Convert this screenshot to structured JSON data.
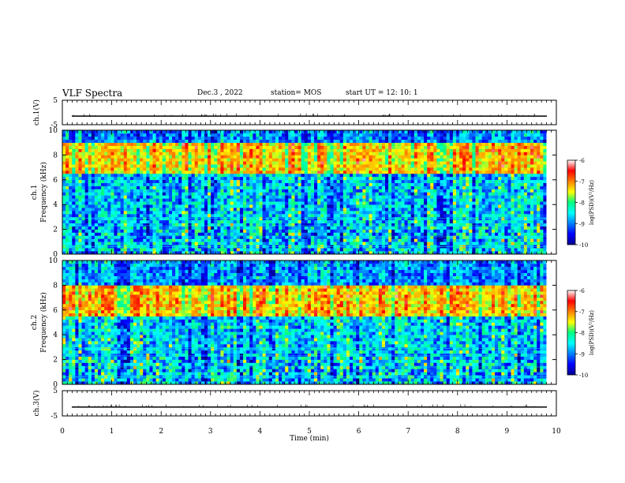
{
  "header": {
    "title": "VLF Spectra",
    "date": "Dec.3 , 2022",
    "station": "station= MOS",
    "start": "start UT = 12: 10: 1"
  },
  "chart_data": [
    {
      "type": "line",
      "panel": "ch1-voltage",
      "ylabel": "ch.1(V)",
      "y_ticks": [
        "5",
        "-5"
      ],
      "ylim": [
        -5,
        5
      ],
      "xlim": [
        0,
        10
      ],
      "baseline_value": -1.5
    },
    {
      "type": "heatmap",
      "panel": "ch1-spectrogram",
      "ylabel": "ch.1 Frequency (kHz)",
      "y_ticks": [
        "0",
        "2",
        "4",
        "6",
        "8",
        "10"
      ],
      "ylim": [
        0,
        10
      ],
      "xlim": [
        0,
        9.8
      ],
      "band_peak_khz": [
        6.5,
        9.0
      ],
      "colorbar": {
        "label": "log(PSD)(V²/Hz)",
        "ticks": [
          "-6",
          "-7",
          "-8",
          "-9",
          "-10"
        ],
        "range": [
          -10,
          -6
        ]
      }
    },
    {
      "type": "heatmap",
      "panel": "ch2-spectrogram",
      "ylabel": "ch.2 Frequency (kHz)",
      "y_ticks": [
        "0",
        "2",
        "4",
        "6",
        "8",
        "10"
      ],
      "ylim": [
        0,
        10
      ],
      "xlim": [
        0,
        9.8
      ],
      "band_peak_khz": [
        5.5,
        8.0
      ],
      "colorbar": {
        "label": "log(PSD)(V²/Hz)",
        "ticks": [
          "-6",
          "-7",
          "-8",
          "-9",
          "-10"
        ],
        "range": [
          -10,
          -6
        ]
      }
    },
    {
      "type": "line",
      "panel": "ch3-voltage",
      "ylabel": "ch.3(V)",
      "y_ticks": [
        "5",
        "-5"
      ],
      "ylim": [
        -5,
        5
      ],
      "xlim": [
        0,
        10
      ],
      "baseline_value": -1.5
    }
  ],
  "x_axis": {
    "label": "Time (min)",
    "ticks": [
      "0",
      "1",
      "2",
      "3",
      "4",
      "5",
      "6",
      "7",
      "8",
      "9",
      "10"
    ],
    "range": [
      0,
      10
    ]
  }
}
